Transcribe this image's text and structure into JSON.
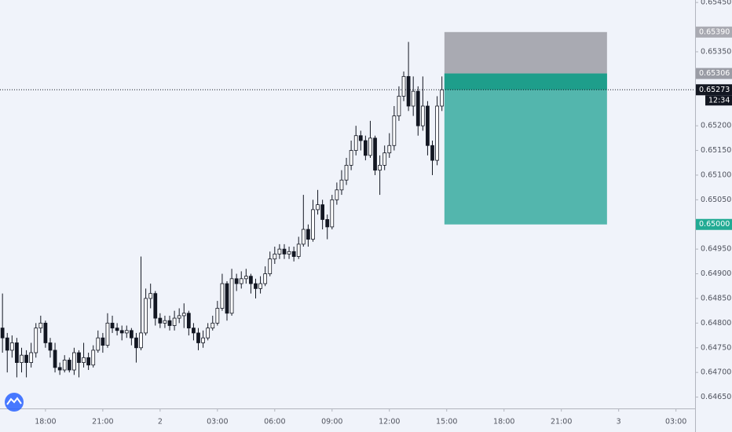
{
  "chart_data": {
    "type": "candlestick",
    "xlim": [
      15.62,
      52.0
    ],
    "ylim": [
      0.64627,
      0.65455
    ],
    "xticks": [
      {
        "value": 18,
        "label": "18:00"
      },
      {
        "value": 21,
        "label": "21:00"
      },
      {
        "value": 24,
        "label": "2"
      },
      {
        "value": 27,
        "label": "03:00"
      },
      {
        "value": 30,
        "label": "06:00"
      },
      {
        "value": 33,
        "label": "09:00"
      },
      {
        "value": 36,
        "label": "12:00"
      },
      {
        "value": 39,
        "label": "15:00"
      },
      {
        "value": 42,
        "label": "18:00"
      },
      {
        "value": 45,
        "label": "21:00"
      },
      {
        "value": 48,
        "label": "3"
      },
      {
        "value": 51,
        "label": "03:00"
      }
    ],
    "yticks": [
      {
        "value": 0.6545,
        "label": "0.65450"
      },
      {
        "value": 0.6535,
        "label": "0.65350"
      },
      {
        "value": 0.652,
        "label": "0.65200"
      },
      {
        "value": 0.6515,
        "label": "0.65150"
      },
      {
        "value": 0.651,
        "label": "0.65100"
      },
      {
        "value": 0.6505,
        "label": "0.65050"
      },
      {
        "value": 0.6495,
        "label": "0.64950"
      },
      {
        "value": 0.649,
        "label": "0.64900"
      },
      {
        "value": 0.6485,
        "label": "0.64850"
      },
      {
        "value": 0.648,
        "label": "0.64800"
      },
      {
        "value": 0.6475,
        "label": "0.64750"
      },
      {
        "value": 0.647,
        "label": "0.64700"
      },
      {
        "value": 0.6465,
        "label": "0.64650"
      }
    ],
    "up_color": "#ffffff",
    "down_color": "#131722",
    "x": [
      15.75,
      16,
      16.25,
      16.5,
      16.75,
      17,
      17.25,
      17.5,
      17.75,
      18,
      18.25,
      18.5,
      18.75,
      19,
      19.25,
      19.5,
      19.75,
      20,
      20.25,
      20.5,
      20.75,
      21,
      21.25,
      21.5,
      21.75,
      22,
      22.25,
      22.5,
      22.75,
      23,
      23.25,
      23.5,
      23.75,
      24,
      24.25,
      24.5,
      24.75,
      25,
      25.25,
      25.5,
      25.75,
      26,
      26.25,
      26.5,
      26.75,
      27,
      27.25,
      27.5,
      27.75,
      28,
      28.25,
      28.5,
      28.75,
      29,
      29.25,
      29.5,
      29.75,
      30,
      30.25,
      30.5,
      30.75,
      31,
      31.25,
      31.5,
      31.75,
      32,
      32.25,
      32.5,
      32.75,
      33,
      33.25,
      33.5,
      33.75,
      34,
      34.25,
      34.5,
      34.75,
      35,
      35.25,
      35.5,
      35.75,
      36,
      36.25,
      36.5,
      36.75,
      37,
      37.25,
      37.5,
      37.75,
      38,
      38.25,
      38.5,
      38.75
    ],
    "open": [
      0.6479,
      0.6477,
      0.64745,
      0.6476,
      0.6472,
      0.64735,
      0.6472,
      0.6474,
      0.6479,
      0.648,
      0.6476,
      0.64745,
      0.6471,
      0.64705,
      0.64725,
      0.64705,
      0.6474,
      0.6472,
      0.6473,
      0.64715,
      0.64745,
      0.6477,
      0.64755,
      0.648,
      0.6479,
      0.64785,
      0.6478,
      0.64785,
      0.6477,
      0.6475,
      0.6478,
      0.6485,
      0.6486,
      0.6481,
      0.648,
      0.64805,
      0.64795,
      0.6481,
      0.64815,
      0.6482,
      0.6479,
      0.6478,
      0.6476,
      0.6477,
      0.6479,
      0.648,
      0.6483,
      0.6488,
      0.6482,
      0.6489,
      0.6488,
      0.6489,
      0.64895,
      0.6488,
      0.6487,
      0.6488,
      0.649,
      0.6493,
      0.6494,
      0.6495,
      0.6494,
      0.64945,
      0.64935,
      0.6496,
      0.6499,
      0.6497,
      0.6503,
      0.6504,
      0.6501,
      0.64995,
      0.6505,
      0.6507,
      0.6509,
      0.6512,
      0.6515,
      0.6518,
      0.6517,
      0.6514,
      0.65175,
      0.6511,
      0.6512,
      0.65145,
      0.6516,
      0.6522,
      0.6526,
      0.653,
      0.6524,
      0.6527,
      0.652,
      0.6524,
      0.6516,
      0.6513,
      0.6524
    ],
    "high": [
      0.6486,
      0.6478,
      0.64775,
      0.6477,
      0.6475,
      0.64745,
      0.6476,
      0.648,
      0.64815,
      0.64805,
      0.6477,
      0.6476,
      0.6472,
      0.64735,
      0.6473,
      0.6475,
      0.64745,
      0.6476,
      0.6474,
      0.64755,
      0.64785,
      0.6478,
      0.6482,
      0.64815,
      0.648,
      0.64795,
      0.64795,
      0.6479,
      0.6478,
      0.64935,
      0.6487,
      0.6488,
      0.64865,
      0.6482,
      0.64815,
      0.64815,
      0.64825,
      0.6483,
      0.6484,
      0.64825,
      0.648,
      0.6479,
      0.64785,
      0.648,
      0.64815,
      0.64845,
      0.649,
      0.64885,
      0.6491,
      0.649,
      0.64905,
      0.6491,
      0.649,
      0.6489,
      0.64895,
      0.64915,
      0.64945,
      0.64955,
      0.6496,
      0.6496,
      0.64955,
      0.64955,
      0.64975,
      0.6506,
      0.65,
      0.6505,
      0.6507,
      0.6505,
      0.6502,
      0.6506,
      0.65085,
      0.6511,
      0.65135,
      0.6517,
      0.652,
      0.6519,
      0.6518,
      0.6521,
      0.6518,
      0.6514,
      0.6516,
      0.65185,
      0.6524,
      0.6528,
      0.6531,
      0.6537,
      0.653,
      0.6528,
      0.653,
      0.6525,
      0.6517,
      0.6526,
      0.653
    ],
    "low": [
      0.6474,
      0.647,
      0.6473,
      0.6469,
      0.647,
      0.6469,
      0.6471,
      0.6473,
      0.6478,
      0.6475,
      0.6473,
      0.647,
      0.64695,
      0.647,
      0.647,
      0.64695,
      0.6469,
      0.6471,
      0.64705,
      0.6471,
      0.6474,
      0.6474,
      0.6475,
      0.6478,
      0.64775,
      0.64765,
      0.6477,
      0.64755,
      0.6472,
      0.64745,
      0.64775,
      0.6483,
      0.64795,
      0.6479,
      0.6479,
      0.64785,
      0.64785,
      0.648,
      0.6479,
      0.64775,
      0.64765,
      0.64745,
      0.6475,
      0.64765,
      0.64785,
      0.64795,
      0.64825,
      0.64805,
      0.64815,
      0.64865,
      0.6487,
      0.6488,
      0.6486,
      0.6485,
      0.6486,
      0.64875,
      0.64895,
      0.6492,
      0.6493,
      0.6493,
      0.6493,
      0.64925,
      0.6493,
      0.64955,
      0.64955,
      0.64965,
      0.6502,
      0.6499,
      0.6497,
      0.6499,
      0.6504,
      0.6506,
      0.6508,
      0.6511,
      0.6514,
      0.6515,
      0.6513,
      0.65135,
      0.651,
      0.6506,
      0.6511,
      0.65135,
      0.6515,
      0.6521,
      0.6525,
      0.6523,
      0.6522,
      0.6518,
      0.6519,
      0.6514,
      0.651,
      0.6512,
      0.6523
    ],
    "close": [
      0.6477,
      0.64745,
      0.6476,
      0.6472,
      0.64735,
      0.6472,
      0.6474,
      0.6479,
      0.648,
      0.6476,
      0.64745,
      0.6471,
      0.64705,
      0.64725,
      0.64705,
      0.6474,
      0.6472,
      0.6473,
      0.64715,
      0.64745,
      0.6477,
      0.64755,
      0.648,
      0.6479,
      0.64785,
      0.6478,
      0.64785,
      0.6477,
      0.6475,
      0.6478,
      0.6485,
      0.6486,
      0.6481,
      0.648,
      0.64805,
      0.64795,
      0.6481,
      0.64815,
      0.6482,
      0.6479,
      0.6478,
      0.6476,
      0.6477,
      0.6479,
      0.648,
      0.6483,
      0.6488,
      0.6482,
      0.6489,
      0.6488,
      0.6489,
      0.64895,
      0.6488,
      0.6487,
      0.6488,
      0.649,
      0.6493,
      0.6494,
      0.6495,
      0.6494,
      0.64945,
      0.64935,
      0.6496,
      0.6499,
      0.6497,
      0.6503,
      0.6504,
      0.6501,
      0.64995,
      0.6505,
      0.6507,
      0.6509,
      0.6512,
      0.6515,
      0.6518,
      0.6517,
      0.6514,
      0.65175,
      0.6511,
      0.6512,
      0.65145,
      0.6516,
      0.6522,
      0.6526,
      0.653,
      0.6524,
      0.6527,
      0.652,
      0.6524,
      0.6516,
      0.6513,
      0.6524,
      0.65273
    ],
    "position": {
      "xrange": [
        38.88,
        47.39
      ],
      "stop": 0.6539,
      "entry": 0.65306,
      "target": 0.65,
      "stop_color": "#a9aab2",
      "target_color": "#53b6ad",
      "active_color": "#1e9e8b"
    },
    "price_labels": [
      {
        "value": 0.6539,
        "label": "0.65390",
        "color": "#a9aab2"
      },
      {
        "value": 0.65306,
        "label": "0.65306",
        "color": "#9a9ca5"
      },
      {
        "value": 0.65273,
        "label": "0.65273",
        "color": "#131722"
      },
      {
        "value": 0.65,
        "label": "0.65000",
        "color": "#22ab94"
      }
    ],
    "last_price": 0.65273,
    "countdown": "12:34"
  }
}
